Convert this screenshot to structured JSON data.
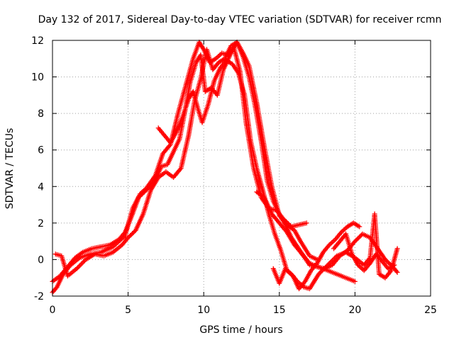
{
  "chart_data": {
    "type": "scatter",
    "title": "Day 132 of 2017, Sidereal Day-to-day VTEC variation (SDTVAR) for receiver rcmn",
    "xlabel": "GPS time / hours",
    "ylabel": "SDTVAR / TECUs",
    "xlim": [
      0,
      25
    ],
    "ylim": [
      -2,
      12
    ],
    "xticks": [
      0,
      5,
      10,
      15,
      20,
      25
    ],
    "yticks": [
      -2,
      0,
      2,
      4,
      6,
      8,
      10,
      12
    ],
    "grid": true,
    "marker": "+",
    "color": "#ff0000",
    "series": [
      {
        "name": "trace-1",
        "x": [
          0.0,
          0.3,
          0.7,
          1.2,
          1.8,
          2.5,
          3.2,
          4.0,
          4.8,
          5.3,
          5.8,
          6.2,
          6.8,
          7.3,
          7.8,
          8.3,
          8.8,
          9.3,
          9.7,
          10.0,
          10.4,
          10.8,
          11.2,
          11.6,
          12.0,
          12.4,
          12.8,
          13.3,
          13.8,
          14.3,
          14.8,
          15.3,
          15.8,
          16.3,
          16.8
        ],
        "y": [
          -1.8,
          -1.5,
          -0.8,
          -0.3,
          0.1,
          0.3,
          0.4,
          0.7,
          1.3,
          2.8,
          3.6,
          3.9,
          4.6,
          5.8,
          6.3,
          8.0,
          9.5,
          11.0,
          11.9,
          11.5,
          10.8,
          11.0,
          11.3,
          11.2,
          11.6,
          10.3,
          7.5,
          5.0,
          3.4,
          2.8,
          2.7,
          2.2,
          1.8,
          1.9,
          2.0
        ]
      },
      {
        "name": "trace-2",
        "x": [
          0.0,
          0.5,
          1.0,
          1.5,
          2.0,
          2.6,
          3.2,
          3.8,
          4.4,
          4.8,
          5.2,
          5.7,
          6.2,
          6.7,
          7.2,
          7.6,
          8.0,
          8.4,
          8.8,
          9.1,
          9.5,
          9.8,
          10.1,
          10.5,
          10.9,
          11.3,
          11.8,
          12.2,
          12.6,
          13.0,
          13.5,
          14.0,
          14.5,
          15.0,
          15.5,
          16.0,
          16.4,
          17.0,
          17.5
        ],
        "y": [
          -1.2,
          -0.9,
          -0.4,
          0.1,
          0.4,
          0.6,
          0.7,
          0.8,
          1.1,
          1.5,
          2.3,
          3.4,
          3.8,
          4.2,
          5.1,
          5.2,
          5.9,
          6.6,
          8.3,
          9.7,
          10.8,
          11.2,
          9.2,
          9.4,
          9.0,
          10.4,
          11.3,
          11.9,
          11.3,
          10.6,
          8.6,
          6.2,
          4.0,
          2.4,
          1.9,
          1.6,
          1.0,
          0.2,
          0.0
        ]
      },
      {
        "name": "trace-3",
        "x": [
          0.2,
          0.6,
          1.0,
          1.6,
          2.2,
          2.8,
          3.4,
          4.0,
          4.6,
          5.0,
          5.5,
          6.0,
          6.5,
          7.0,
          7.5,
          8.0,
          8.5,
          9.0,
          9.4,
          9.8,
          10.2,
          10.6,
          11.0,
          11.4,
          11.8,
          12.2,
          12.6,
          13.0,
          13.4,
          13.8,
          14.2,
          14.6,
          15.0,
          15.4,
          15.8,
          16.2,
          16.6,
          17.0,
          17.6,
          18.2,
          18.8,
          19.4,
          20.0
        ],
        "y": [
          0.3,
          0.2,
          -0.9,
          -0.5,
          0.0,
          0.3,
          0.2,
          0.4,
          0.8,
          1.2,
          1.6,
          2.5,
          3.8,
          4.5,
          4.8,
          4.5,
          5.0,
          6.8,
          8.7,
          9.9,
          11.5,
          10.4,
          10.8,
          11.0,
          11.7,
          11.9,
          11.1,
          10.0,
          8.4,
          6.5,
          4.3,
          3.2,
          2.5,
          1.9,
          1.2,
          0.7,
          0.2,
          -0.3,
          -0.4,
          -0.6,
          -0.8,
          -1.0,
          -1.2
        ]
      },
      {
        "name": "trace-4",
        "x": [
          7.0,
          7.4,
          7.8,
          8.2,
          8.6,
          9.0,
          9.3,
          9.6,
          9.9,
          10.3,
          10.7,
          11.1,
          11.5,
          11.9,
          12.3,
          12.7,
          13.1,
          13.5,
          13.9,
          14.3,
          14.7,
          15.1,
          15.5,
          15.9,
          16.3,
          16.7,
          17.1,
          17.5,
          17.9,
          18.3,
          18.7,
          19.1,
          19.5,
          19.9,
          20.3
        ],
        "y": [
          7.2,
          6.8,
          6.4,
          7.0,
          7.8,
          8.8,
          9.2,
          8.3,
          7.5,
          8.5,
          9.8,
          10.5,
          10.9,
          10.7,
          10.2,
          9.0,
          6.5,
          5.0,
          3.8,
          2.5,
          1.4,
          0.5,
          -0.6,
          -0.9,
          -1.6,
          -1.2,
          -0.6,
          -0.2,
          0.4,
          0.8,
          1.1,
          1.5,
          1.8,
          2.0,
          1.8
        ]
      },
      {
        "name": "trace-5",
        "x": [
          13.5,
          14.0,
          14.5,
          15.0,
          15.5,
          16.0,
          16.5,
          17.0,
          17.5,
          18.0,
          18.5,
          19.0,
          19.5,
          20.0,
          20.5,
          21.0,
          21.5,
          22.0,
          22.5,
          22.8
        ],
        "y": [
          3.7,
          3.4,
          2.5,
          2.0,
          1.5,
          0.8,
          0.3,
          -0.2,
          -0.4,
          -0.5,
          -0.3,
          0.2,
          0.5,
          1.0,
          1.4,
          1.2,
          0.6,
          0.0,
          -0.4,
          -0.7
        ]
      },
      {
        "name": "trace-6",
        "x": [
          14.6,
          15.0,
          15.4,
          15.8,
          16.2,
          16.6,
          17.0,
          17.6,
          18.2,
          18.8,
          19.4,
          20.0,
          20.6,
          21.0,
          21.3,
          21.6,
          22.0,
          22.4,
          22.8
        ],
        "y": [
          -0.5,
          -1.3,
          -0.5,
          -0.8,
          -1.2,
          -1.5,
          -1.6,
          -0.8,
          -0.3,
          0.2,
          0.4,
          0.1,
          -0.3,
          0.1,
          2.5,
          -0.8,
          -1.0,
          -0.6,
          0.6
        ]
      },
      {
        "name": "trace-7",
        "x": [
          18.6,
          19.0,
          19.4,
          19.8,
          20.2,
          20.6,
          21.0,
          21.4,
          21.8,
          22.2,
          22.6
        ],
        "y": [
          0.6,
          1.0,
          1.4,
          0.3,
          -0.3,
          -0.6,
          -0.2,
          0.3,
          -0.1,
          -0.5,
          -0.3
        ]
      }
    ]
  }
}
